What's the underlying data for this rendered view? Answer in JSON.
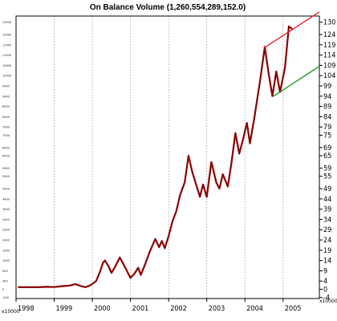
{
  "chart_data": {
    "type": "line",
    "title": "On Balance Volume (1,260,554,289,152.0)",
    "x_ticks": [
      "1998",
      "1999",
      "2000",
      "2001",
      "2002",
      "2003",
      "2004",
      "2005"
    ],
    "right_axis": {
      "ticks": [
        "130",
        "124",
        "119",
        "114",
        "109",
        "104",
        "99",
        "94",
        "89",
        "84",
        "79",
        "75",
        "69",
        "65",
        "59",
        "55",
        "49",
        "44",
        "39",
        "34",
        "29",
        "24",
        "19",
        "14",
        "9",
        "4",
        "0",
        "-4"
      ],
      "unit_label": "x10000"
    },
    "left_axis": {
      "ticks": [
        "13000",
        "12400",
        "11900",
        "11400",
        "10900",
        "10400",
        "9900",
        "9400",
        "8900",
        "8400",
        "7900",
        "7500",
        "6900",
        "6500",
        "5900",
        "5500",
        "4900",
        "4400",
        "3900",
        "3400",
        "2900",
        "2400",
        "1900",
        "1400",
        "900",
        "400",
        "0",
        "-400"
      ],
      "unit_label": "x10000"
    },
    "ylim": [
      -4.5,
      133
    ],
    "xlim": [
      1998.0,
      2005.95
    ],
    "series": [
      {
        "color": "#8b0000",
        "points": [
          [
            1998.05,
            1.0
          ],
          [
            1998.3,
            1.0
          ],
          [
            1998.6,
            1.0
          ],
          [
            1998.8,
            1.2
          ],
          [
            1999.0,
            1.1
          ],
          [
            1999.2,
            1.5
          ],
          [
            1999.4,
            1.8
          ],
          [
            1999.55,
            2.5
          ],
          [
            1999.7,
            1.6
          ],
          [
            1999.82,
            1.0
          ],
          [
            1999.95,
            2.0
          ],
          [
            2000.1,
            4.0
          ],
          [
            2000.2,
            8.5
          ],
          [
            2000.28,
            13.0
          ],
          [
            2000.33,
            14.0
          ],
          [
            2000.43,
            11.0
          ],
          [
            2000.5,
            8.0
          ],
          [
            2000.6,
            11.0
          ],
          [
            2000.72,
            15.5
          ],
          [
            2000.85,
            11.0
          ],
          [
            2001.0,
            5.5
          ],
          [
            2001.12,
            8.0
          ],
          [
            2001.2,
            10.5
          ],
          [
            2001.27,
            7.0
          ],
          [
            2001.38,
            12.0
          ],
          [
            2001.52,
            19.0
          ],
          [
            2001.65,
            24.5
          ],
          [
            2001.75,
            20.5
          ],
          [
            2001.82,
            23.5
          ],
          [
            2001.9,
            20.0
          ],
          [
            2002.0,
            26.0
          ],
          [
            2002.1,
            33.0
          ],
          [
            2002.2,
            38.0
          ],
          [
            2002.3,
            46.0
          ],
          [
            2002.42,
            52.0
          ],
          [
            2002.52,
            65.0
          ],
          [
            2002.62,
            57.0
          ],
          [
            2002.72,
            51.0
          ],
          [
            2002.82,
            45.0
          ],
          [
            2002.9,
            51.0
          ],
          [
            2003.0,
            45.0
          ],
          [
            2003.12,
            62.0
          ],
          [
            2003.25,
            52.0
          ],
          [
            2003.33,
            49.0
          ],
          [
            2003.42,
            56.0
          ],
          [
            2003.55,
            50.0
          ],
          [
            2003.65,
            62.0
          ],
          [
            2003.75,
            76.0
          ],
          [
            2003.85,
            66.0
          ],
          [
            2003.95,
            73.0
          ],
          [
            2004.05,
            81.0
          ],
          [
            2004.13,
            71.0
          ],
          [
            2004.25,
            84.0
          ],
          [
            2004.4,
            102.0
          ],
          [
            2004.52,
            118.0
          ],
          [
            2004.62,
            105.0
          ],
          [
            2004.72,
            94.0
          ],
          [
            2004.82,
            106.0
          ],
          [
            2004.92,
            96.0
          ],
          [
            2005.05,
            108.0
          ],
          [
            2005.15,
            128.0
          ],
          [
            2005.25,
            126.5
          ]
        ]
      }
    ],
    "trendlines": [
      {
        "color": "#e8202a",
        "from": [
          2004.5,
          117.5
        ],
        "to": [
          2005.95,
          135.0
        ]
      },
      {
        "color": "#1f9a1f",
        "from": [
          2004.75,
          94.0
        ],
        "to": [
          2005.95,
          108.5
        ]
      }
    ]
  }
}
